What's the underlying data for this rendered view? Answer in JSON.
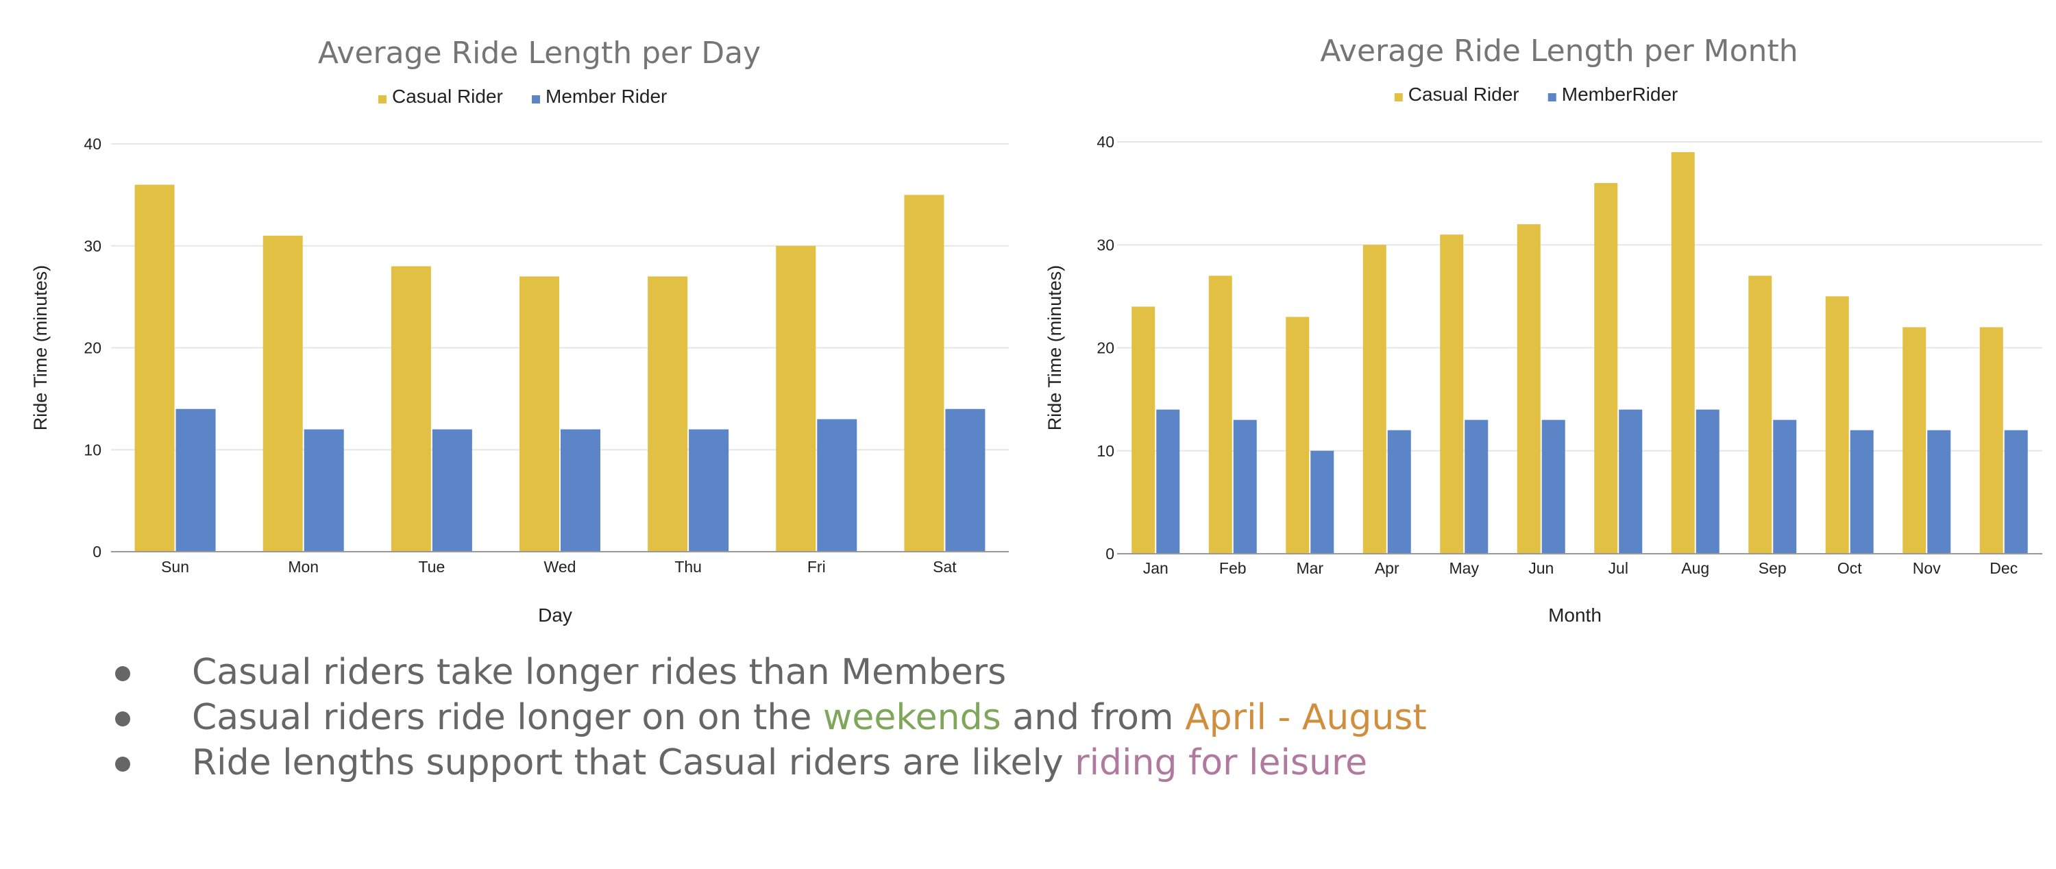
{
  "colors": {
    "casual": "#E2C044",
    "member": "#5B85C6",
    "title": "#757575",
    "axis_text": "#222222",
    "grid": "#E6E6E6",
    "baseline": "#999999",
    "green": "#7FA65A",
    "orange": "#D08F3E",
    "purple": "#B07A9E"
  },
  "chart_data": [
    {
      "type": "bar",
      "title": "Average Ride Length per Day",
      "xlabel": "Day",
      "ylabel": "Ride Time (minutes)",
      "ylim": [
        0,
        40
      ],
      "yticks": [
        0,
        10,
        20,
        30,
        40
      ],
      "grid": true,
      "legend_position": "top",
      "categories": [
        "Sun",
        "Mon",
        "Tue",
        "Wed",
        "Thu",
        "Fri",
        "Sat"
      ],
      "series": [
        {
          "name": "Casual Rider",
          "values": [
            36,
            31,
            28,
            27,
            27,
            30,
            35
          ]
        },
        {
          "name": "Member Rider",
          "values": [
            14,
            12,
            12,
            12,
            12,
            13,
            14
          ]
        }
      ]
    },
    {
      "type": "bar",
      "title": "Average Ride Length per Month",
      "xlabel": "Month",
      "ylabel": "Ride Time (minutes)",
      "ylim": [
        0,
        40
      ],
      "yticks": [
        0,
        10,
        20,
        30,
        40
      ],
      "grid": true,
      "legend_position": "top",
      "categories": [
        "Jan",
        "Feb",
        "Mar",
        "Apr",
        "May",
        "Jun",
        "Jul",
        "Aug",
        "Sep",
        "Oct",
        "Nov",
        "Dec"
      ],
      "series": [
        {
          "name": "Casual Rider",
          "values": [
            24,
            27,
            23,
            30,
            31,
            32,
            36,
            39,
            27,
            25,
            22,
            22
          ]
        },
        {
          "name": "MemberRider",
          "values": [
            14,
            13,
            10,
            12,
            13,
            13,
            14,
            14,
            13,
            12,
            12,
            12
          ]
        }
      ]
    }
  ],
  "bullets": [
    [
      {
        "text": "Casual riders take longer rides than Members",
        "color": "#666666"
      }
    ],
    [
      {
        "text": "Casual riders ride longer on on the ",
        "color": "#666666"
      },
      {
        "text": "weekends",
        "color": "#7FA65A"
      },
      {
        "text": " and from ",
        "color": "#666666"
      },
      {
        "text": "April - August",
        "color": "#D08F3E"
      }
    ],
    [
      {
        "text": "Ride lengths support that Casual riders are likely ",
        "color": "#666666"
      },
      {
        "text": "riding for leisure",
        "color": "#B07A9E"
      }
    ]
  ]
}
